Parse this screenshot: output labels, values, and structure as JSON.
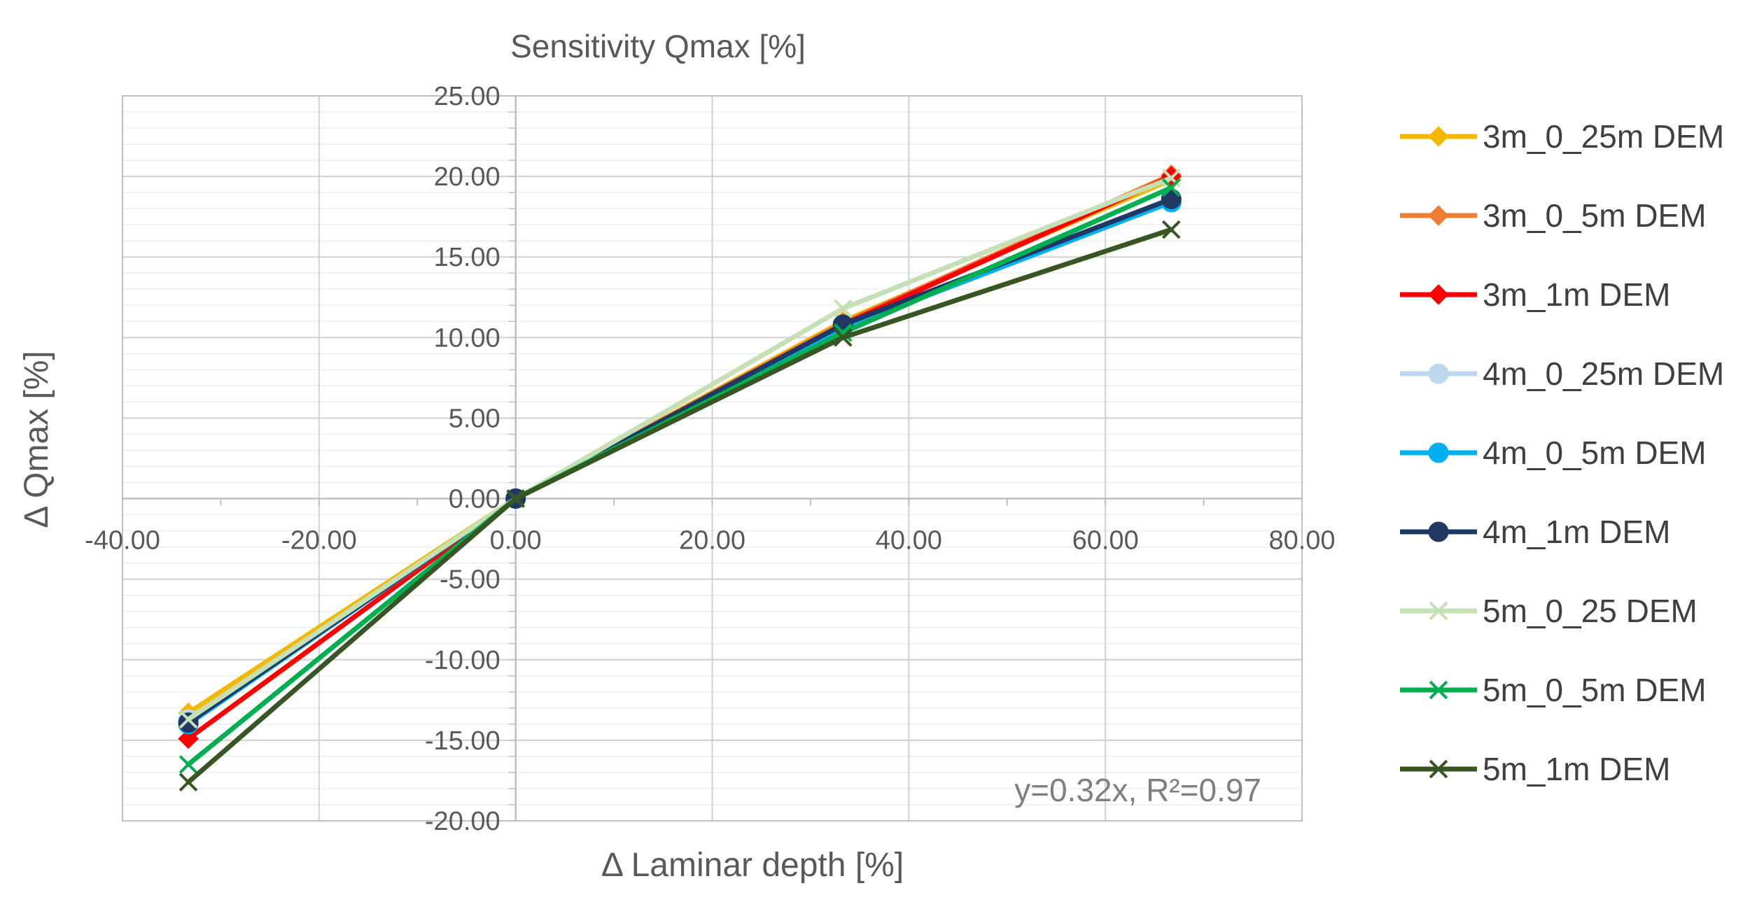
{
  "chart_data": {
    "type": "line",
    "title": "Sensitivity Qmax [%]",
    "xlabel": "Δ Laminar depth [%]",
    "ylabel": "Δ Qmax [%]",
    "xlim": [
      -40,
      80
    ],
    "ylim": [
      -20,
      25
    ],
    "x_ticks": [
      -40,
      -20,
      0,
      20,
      40,
      60,
      80
    ],
    "y_ticks": [
      -20,
      -15,
      -10,
      -5,
      0,
      5,
      10,
      15,
      20,
      25
    ],
    "x_tick_labels": [
      "-40.00",
      "-20.00",
      "0.00",
      "20.00",
      "40.00",
      "60.00",
      "80.00"
    ],
    "y_tick_labels": [
      "-20.00",
      "-15.00",
      "-10.00",
      "-5.00",
      "0.00",
      "5.00",
      "10.00",
      "15.00",
      "20.00",
      "25.00"
    ],
    "grid": true,
    "legend_position": "right",
    "annotation": "y=0.32x, R²=0.97",
    "series": [
      {
        "name": "3m_0_25m DEM",
        "color": "#F5B800",
        "marker": "diamond",
        "x": [
          -33.3,
          0,
          33.3,
          66.7
        ],
        "y": [
          -13.3,
          0,
          11.0,
          19.8
        ]
      },
      {
        "name": "3m_0_5m DEM",
        "color": "#ED7D31",
        "marker": "diamond",
        "x": [
          -33.3,
          0,
          33.3,
          66.7
        ],
        "y": [
          -13.8,
          0,
          10.9,
          20.1
        ]
      },
      {
        "name": "3m_1m DEM",
        "color": "#FF0000",
        "marker": "diamond",
        "x": [
          -33.3,
          0,
          33.3,
          66.7
        ],
        "y": [
          -14.9,
          0,
          10.8,
          20.0
        ]
      },
      {
        "name": "4m_0_25m DEM",
        "color": "#BDD7EE",
        "marker": "circle",
        "x": [
          -33.3,
          0,
          33.3,
          66.7
        ],
        "y": [
          -13.7,
          0,
          10.7,
          18.6
        ]
      },
      {
        "name": "4m_0_5m DEM",
        "color": "#00B0F0",
        "marker": "circle",
        "x": [
          -33.3,
          0,
          33.3,
          66.7
        ],
        "y": [
          -14.0,
          0,
          10.6,
          18.4
        ]
      },
      {
        "name": "4m_1m DEM",
        "color": "#1F3864",
        "marker": "circle",
        "x": [
          -33.3,
          0,
          33.3,
          66.7
        ],
        "y": [
          -13.9,
          0,
          10.8,
          18.6
        ]
      },
      {
        "name": "5m_0_25 DEM",
        "color": "#C5E0B4",
        "marker": "x",
        "x": [
          -33.3,
          0,
          33.3,
          66.7
        ],
        "y": [
          -13.7,
          0,
          11.8,
          19.9
        ]
      },
      {
        "name": "5m_0_5m DEM",
        "color": "#00B050",
        "marker": "x",
        "x": [
          -33.3,
          0,
          33.3,
          66.7
        ],
        "y": [
          -16.5,
          0,
          10.3,
          19.3
        ]
      },
      {
        "name": "5m_1m DEM",
        "color": "#375623",
        "marker": "x",
        "x": [
          -33.3,
          0,
          33.3,
          66.7
        ],
        "y": [
          -17.6,
          0,
          10.0,
          16.7
        ]
      }
    ]
  }
}
